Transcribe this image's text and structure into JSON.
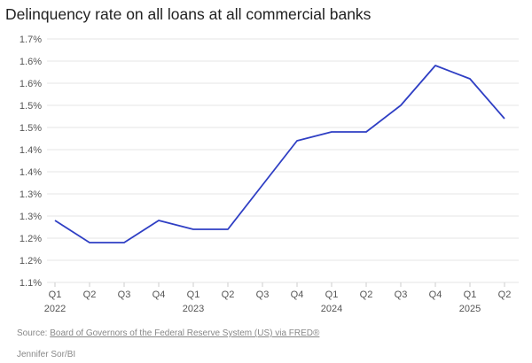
{
  "chart_data": {
    "type": "line",
    "title": "Delinquency rate on all loans at all commercial banks",
    "xlabel": "",
    "ylabel": "",
    "categories": [
      "Q1",
      "Q2",
      "Q3",
      "Q4",
      "Q1",
      "Q2",
      "Q3",
      "Q4",
      "Q1",
      "Q2",
      "Q3",
      "Q4",
      "Q1",
      "Q2"
    ],
    "year_labels": [
      "2022",
      "",
      "",
      "",
      "2023",
      "",
      "",
      "",
      "2024",
      "",
      "",
      "",
      "2025",
      ""
    ],
    "series": [
      {
        "name": "Delinquency rate",
        "color": "#2f3fc4",
        "values": [
          1.29,
          1.24,
          1.24,
          1.29,
          1.27,
          1.27,
          1.37,
          1.47,
          1.49,
          1.49,
          1.55,
          1.64,
          1.61,
          1.52
        ]
      }
    ],
    "ylim": [
      1.15,
      1.7
    ],
    "yticks": [
      1.7,
      1.65,
      1.6,
      1.55,
      1.5,
      1.45,
      1.4,
      1.35,
      1.3,
      1.25,
      1.2,
      1.15
    ],
    "ytick_labels": [
      "1.7%",
      "1.6%",
      "1.6%",
      "1.5%",
      "1.5%",
      "1.4%",
      "1.4%",
      "1.3%",
      "1.3%",
      "1.2%",
      "1.2%",
      "1.1%"
    ],
    "grid": true
  },
  "source_prefix": "Source: ",
  "source_link": "Board of Governors of the Federal Reserve System (US) via FRED®",
  "credit": "Jennifer Sor/BI"
}
